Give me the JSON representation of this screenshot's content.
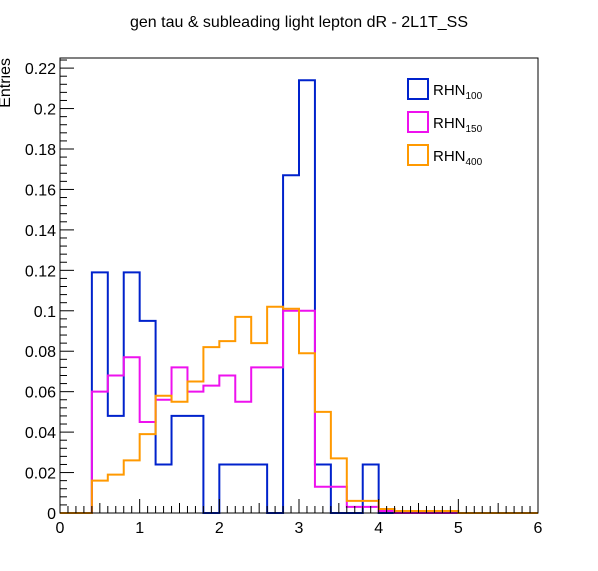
{
  "chart_data": {
    "type": "histogram",
    "title": "gen tau & subleading light lepton dR - 2L1T_SS",
    "xlabel": "",
    "ylabel": "Entries",
    "xlim": [
      0,
      6
    ],
    "ylim": [
      0,
      0.225
    ],
    "bin_width": 0.2,
    "x_ticks": [
      "0",
      "1",
      "2",
      "3",
      "4",
      "5",
      "6"
    ],
    "y_ticks": [
      "0",
      "0.02",
      "0.04",
      "0.06",
      "0.08",
      "0.1",
      "0.12",
      "0.14",
      "0.16",
      "0.18",
      "0.2",
      "0.22"
    ],
    "y_tick_values": [
      0,
      0.02,
      0.04,
      0.06,
      0.08,
      0.1,
      0.12,
      0.14,
      0.16,
      0.18,
      0.2,
      0.22
    ],
    "grid": false,
    "legend_position": "top-right",
    "series": [
      {
        "base": "RHN",
        "sub": "100",
        "color": "#0022cc",
        "values": [
          0,
          0,
          0.119,
          0.048,
          0.119,
          0.095,
          0.024,
          0.048,
          0.048,
          0,
          0.024,
          0.024,
          0.024,
          0,
          0.167,
          0.214,
          0.024,
          0,
          0,
          0.024,
          0,
          0,
          0,
          0,
          0,
          0,
          0,
          0,
          0,
          0
        ]
      },
      {
        "base": "RHN",
        "sub": "150",
        "color": "#ee11ee",
        "values": [
          0,
          0,
          0.06,
          0.068,
          0.077,
          0.045,
          0.056,
          0.072,
          0.06,
          0.063,
          0.068,
          0.055,
          0.072,
          0.072,
          0.1,
          0.1,
          0.013,
          0.013,
          0.003,
          0.003,
          0.001,
          0,
          0,
          0,
          0,
          0,
          0,
          0,
          0,
          0
        ]
      },
      {
        "base": "RHN",
        "sub": "400",
        "color": "#ff9900",
        "values": [
          0,
          0,
          0.016,
          0.019,
          0.026,
          0.039,
          0.058,
          0.055,
          0.065,
          0.082,
          0.085,
          0.097,
          0.084,
          0.102,
          0.101,
          0.079,
          0.05,
          0.027,
          0.006,
          0.006,
          0.002,
          0.001,
          0.001,
          0.001,
          0.001,
          0,
          0,
          0,
          0,
          0
        ]
      }
    ]
  }
}
